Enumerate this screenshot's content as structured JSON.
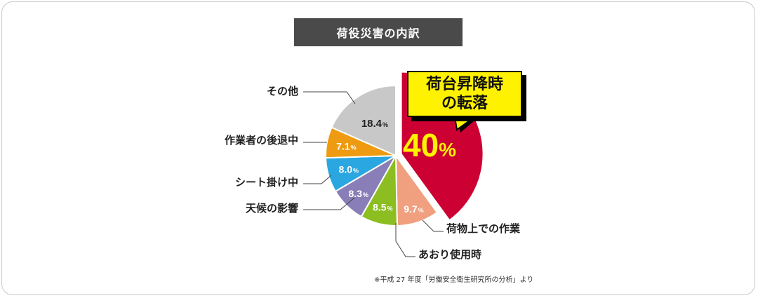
{
  "title": "荷役災害の内訳",
  "callout": {
    "line1": "荷台昇降時",
    "line2": "の転落"
  },
  "source": "※平成 27 年度「労働安全衛生研究所の分析」より",
  "chart_data": {
    "type": "pie",
    "title": "荷役災害の内訳",
    "unit": "%",
    "slices": [
      {
        "label": "荷台昇降時の転落",
        "value": 40,
        "value_text": "40",
        "color": "#cc0033"
      },
      {
        "label": "荷物上での作業",
        "value": 9.7,
        "value_text": "9.7",
        "color": "#f0a07e"
      },
      {
        "label": "あおり使用時",
        "value": 8.5,
        "value_text": "8.5",
        "color": "#8cbe22"
      },
      {
        "label": "天候の影響",
        "value": 8.3,
        "value_text": "8.3",
        "color": "#8a7eb8"
      },
      {
        "label": "シート掛け中",
        "value": 8.0,
        "value_text": "8.0",
        "color": "#2aa6e0"
      },
      {
        "label": "作業者の後退中",
        "value": 7.1,
        "value_text": "7.1",
        "color": "#ee9b12"
      },
      {
        "label": "その他",
        "value": 18.4,
        "value_text": "18.4",
        "color": "#c8c8c8"
      }
    ]
  }
}
